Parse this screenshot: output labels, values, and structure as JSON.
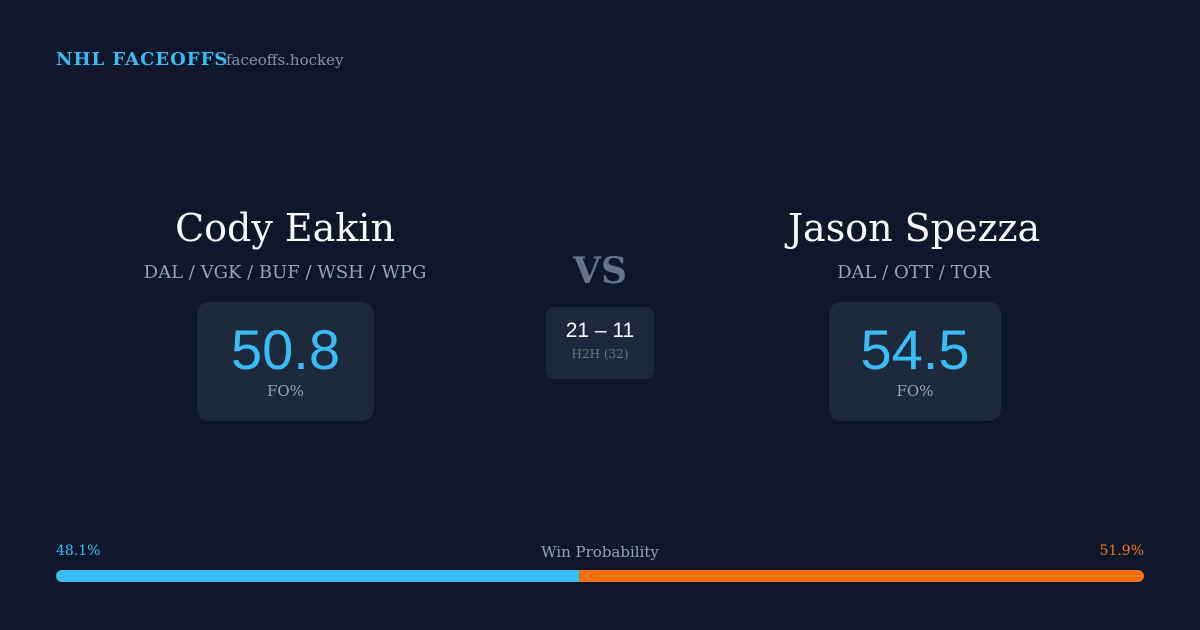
{
  "header": {
    "brand": "NHL FACEOFFS",
    "site": "faceoffs.hockey"
  },
  "players": [
    {
      "name": "Cody Eakin",
      "teams": "DAL / VGK / BUF / WSH / WPG",
      "fo_pct": 50.8,
      "fo_label": "FO%"
    },
    {
      "name": "Jason Spezza",
      "teams": "DAL / OTT / TOR",
      "fo_pct": 54.5,
      "fo_label": "FO%"
    }
  ],
  "vs": "VS",
  "h2h": {
    "score": "21 – 11",
    "label": "H2H (32)"
  },
  "win_probability": {
    "label": "Win Probability",
    "series": [
      {
        "values": [
          48.1
        ],
        "value_labels": [
          "48.1%"
        ],
        "color": "#38bdf8"
      },
      {
        "values": [
          51.9
        ],
        "value_labels": [
          "51.9%"
        ],
        "color": "#f97316"
      }
    ]
  }
}
